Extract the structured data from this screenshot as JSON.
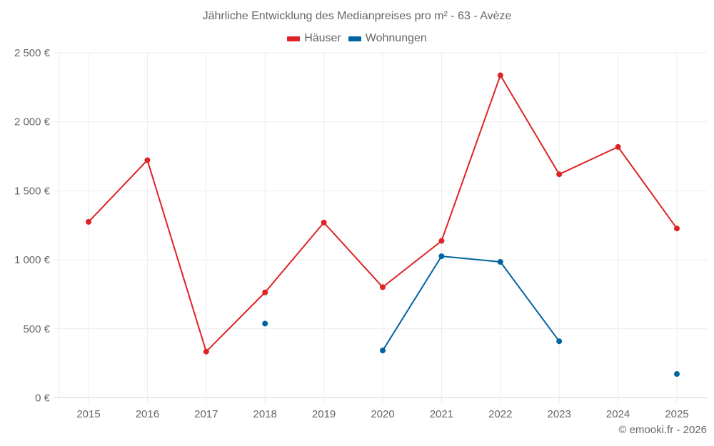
{
  "chart_data": {
    "type": "line",
    "title": "Jährliche Entwicklung des Medianpreises pro m² - 63 - Avèze",
    "xlabel": "",
    "ylabel": "",
    "categories": [
      "2015",
      "2016",
      "2017",
      "2018",
      "2019",
      "2020",
      "2021",
      "2022",
      "2023",
      "2024",
      "2025"
    ],
    "series": [
      {
        "name": "Häuser",
        "color": "#dd2326",
        "values": [
          1275,
          1722,
          335,
          764,
          1270,
          802,
          1137,
          2337,
          1620,
          1818,
          1227
        ]
      },
      {
        "name": "Wohnungen",
        "color": "#0064a0",
        "values": [
          null,
          null,
          null,
          538,
          null,
          343,
          1026,
          985,
          410,
          null,
          173
        ]
      }
    ],
    "ylim": [
      0,
      2500
    ],
    "yticks": [
      0,
      500,
      1000,
      1500,
      2000,
      2500
    ],
    "ytick_labels": [
      "0 €",
      "500 €",
      "1 000 €",
      "1 500 €",
      "2 000 €",
      "2 500 €"
    ],
    "grid": true,
    "legend_position": "top"
  },
  "title": "Jährliche Entwicklung des Medianpreises pro m² - 63 - Avèze",
  "legend": [
    {
      "label": "Häuser",
      "color": "#dd2326"
    },
    {
      "label": "Wohnungen",
      "color": "#0064a0"
    }
  ],
  "credit": "© emooki.fr - 2026"
}
